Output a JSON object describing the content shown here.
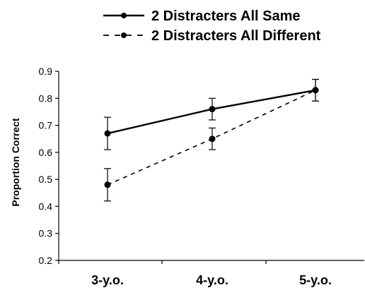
{
  "chart_data": {
    "type": "line",
    "title": "",
    "xlabel": "",
    "ylabel": "Proportion Correct",
    "categories": [
      "3-y.o.",
      "4-y.o.",
      "5-y.o."
    ],
    "ylim": [
      0.2,
      0.9
    ],
    "yticks": [
      0.2,
      0.3,
      0.4,
      0.5,
      0.6,
      0.7,
      0.8,
      0.9
    ],
    "ytick_labels": [
      "0.2",
      "0.3",
      "0.4",
      "0.5",
      "0.6",
      "0.7",
      "0.8",
      "0.9"
    ],
    "grid": false,
    "legend_position": "top",
    "series": [
      {
        "name": "2 Distracters All Same",
        "style": "solid",
        "color": "#000000",
        "values": [
          0.67,
          0.76,
          0.83
        ],
        "error": [
          0.06,
          0.04,
          0.04
        ]
      },
      {
        "name": "2 Distracters All Different",
        "style": "dashed",
        "color": "#000000",
        "values": [
          0.48,
          0.65,
          0.83
        ],
        "error": [
          0.06,
          0.04,
          0.04
        ]
      }
    ]
  }
}
